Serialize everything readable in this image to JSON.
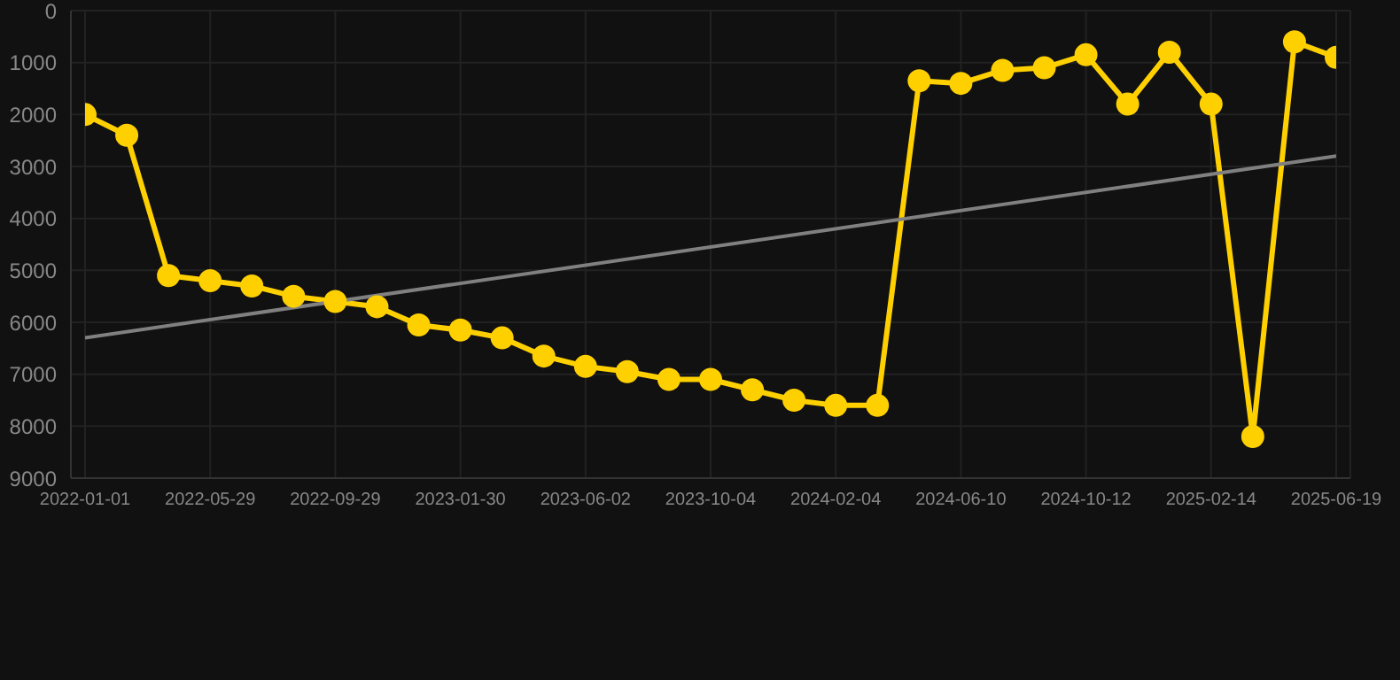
{
  "chart_data": {
    "type": "line",
    "categories": [
      "2022-01-01",
      null,
      null,
      "2022-05-29",
      null,
      null,
      "2022-09-29",
      null,
      null,
      "2023-01-30",
      null,
      null,
      "2023-06-02",
      null,
      null,
      "2023-10-04",
      null,
      null,
      "2024-02-04",
      null,
      null,
      "2024-06-10",
      null,
      null,
      "2024-10-12",
      null,
      null,
      "2025-02-14",
      null,
      null,
      "2025-06-19"
    ],
    "series": [
      {
        "color": "#ffd000",
        "marker": "circle",
        "values": [
          2000,
          2400,
          5100,
          5200,
          5300,
          5500,
          5600,
          5700,
          6050,
          6150,
          6300,
          6650,
          6850,
          6950,
          7100,
          7100,
          7300,
          7500,
          7600,
          7600,
          1350,
          1400,
          1150,
          1100,
          850,
          1800,
          800,
          1800,
          8200,
          600,
          900
        ]
      },
      {
        "type": "line",
        "color": "#808080",
        "marker": "none",
        "values": [
          6300,
          null,
          null,
          null,
          null,
          null,
          null,
          null,
          null,
          null,
          null,
          null,
          null,
          null,
          null,
          null,
          null,
          null,
          null,
          null,
          null,
          null,
          null,
          null,
          null,
          null,
          null,
          null,
          null,
          null,
          2800
        ]
      }
    ],
    "ylim": [
      9000,
      0
    ],
    "yticks": [
      0,
      1000,
      2000,
      3000,
      4000,
      5000,
      6000,
      7000,
      8000,
      9000
    ],
    "grid": true
  }
}
